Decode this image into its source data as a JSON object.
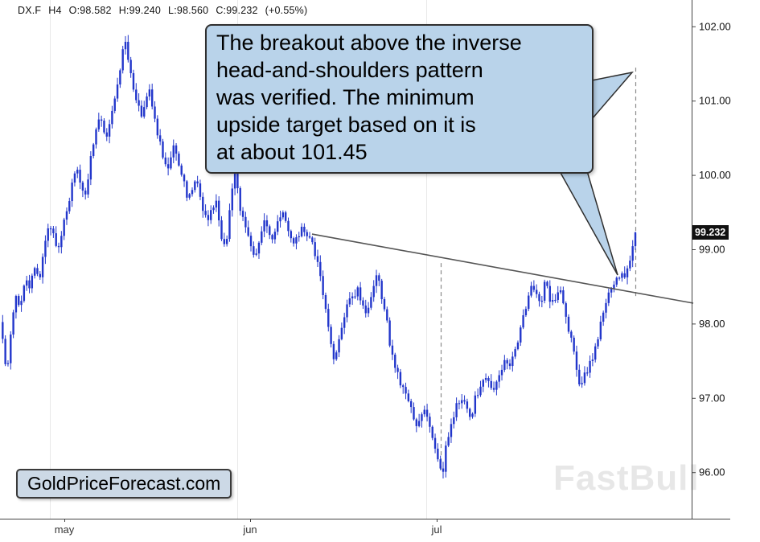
{
  "header": {
    "symbol": "DX.F",
    "timeframe": "H4",
    "open": "O:98.582",
    "high": "H:99.240",
    "low": "L:98.560",
    "close": "C:99.232",
    "change": "(+0.55%)"
  },
  "annotation": {
    "lines": [
      "The breakout above the inverse",
      "head-and-shoulders pattern",
      "was verified. The minimum",
      "upside target based on it is",
      "at about 101.45"
    ]
  },
  "watermarks": {
    "brand": "GoldPriceForecast.com",
    "platform": "FastBull"
  },
  "price_tag": "99.232",
  "colors": {
    "candle": "#2236cb",
    "callout_bg": "#b9d3ea",
    "callout_border": "#2f2f2f",
    "trendline": "#555555",
    "dashed": "#8a8a8a",
    "axis": "#444444",
    "grid": "#e9e9e9",
    "tick_text": "#111111",
    "xlabel_text": "#333333"
  },
  "chart_data": {
    "type": "candlestick",
    "title": "DX.F H4 (US Dollar Index futures, 4-hour)",
    "ylim": [
      95.38,
      102.36
    ],
    "y_ticks": [
      102,
      101,
      100,
      99,
      98,
      97,
      96
    ],
    "x_labels": [
      {
        "label": "may",
        "x": 80
      },
      {
        "label": "jun",
        "x": 311
      },
      {
        "label": "jul",
        "x": 543
      }
    ],
    "month_gridlines": [
      62,
      295,
      530
    ],
    "session_ohlc": {
      "open": 98.582,
      "high": 99.24,
      "low": 98.56,
      "close": 99.232,
      "change_pct": 0.55
    },
    "last_close": 99.232,
    "target_level": 101.45,
    "trendline": {
      "x1": 388,
      "price1": 99.21,
      "x2": 862,
      "price2": 98.28
    },
    "dashed_lines": [
      {
        "x": 548,
        "price_top": 98.82,
        "price_bottom": 96.02
      },
      {
        "x": 790,
        "price_top": 101.45,
        "price_bottom": 98.35
      }
    ],
    "price_path": [
      [
        0,
        98.05
      ],
      [
        5,
        97.6
      ],
      [
        9,
        97.32
      ],
      [
        14,
        97.95
      ],
      [
        19,
        98.4
      ],
      [
        25,
        98.2
      ],
      [
        31,
        98.62
      ],
      [
        37,
        98.5
      ],
      [
        43,
        98.78
      ],
      [
        49,
        98.6
      ],
      [
        55,
        99.05
      ],
      [
        61,
        99.38
      ],
      [
        67,
        99.15
      ],
      [
        73,
        99.02
      ],
      [
        79,
        99.35
      ],
      [
        85,
        99.62
      ],
      [
        91,
        99.95
      ],
      [
        95,
        100.12
      ],
      [
        100,
        99.85
      ],
      [
        106,
        99.72
      ],
      [
        112,
        100.18
      ],
      [
        118,
        100.48
      ],
      [
        124,
        100.85
      ],
      [
        129,
        100.62
      ],
      [
        134,
        100.52
      ],
      [
        140,
        100.95
      ],
      [
        146,
        101.18
      ],
      [
        152,
        101.68
      ],
      [
        156,
        101.82
      ],
      [
        160,
        101.55
      ],
      [
        164,
        101.32
      ],
      [
        168,
        101.08
      ],
      [
        173,
        100.95
      ],
      [
        177,
        100.8
      ],
      [
        182,
        101.05
      ],
      [
        187,
        101.15
      ],
      [
        191,
        100.82
      ],
      [
        197,
        100.52
      ],
      [
        203,
        100.22
      ],
      [
        209,
        100.12
      ],
      [
        215,
        100.4
      ],
      [
        221,
        100.18
      ],
      [
        227,
        99.98
      ],
      [
        233,
        99.68
      ],
      [
        239,
        99.85
      ],
      [
        245,
        99.95
      ],
      [
        251,
        99.6
      ],
      [
        257,
        99.4
      ],
      [
        263,
        99.55
      ],
      [
        269,
        99.65
      ],
      [
        275,
        99.2
      ],
      [
        281,
        99.02
      ],
      [
        287,
        99.68
      ],
      [
        292,
        100.02
      ],
      [
        298,
        99.6
      ],
      [
        304,
        99.35
      ],
      [
        310,
        99.12
      ],
      [
        316,
        98.95
      ],
      [
        322,
        99.05
      ],
      [
        328,
        99.42
      ],
      [
        334,
        99.25
      ],
      [
        340,
        99.12
      ],
      [
        346,
        99.45
      ],
      [
        352,
        99.52
      ],
      [
        358,
        99.25
      ],
      [
        364,
        99.05
      ],
      [
        370,
        99.15
      ],
      [
        376,
        99.32
      ],
      [
        382,
        99.2
      ],
      [
        388,
        99.08
      ],
      [
        394,
        98.85
      ],
      [
        400,
        98.55
      ],
      [
        406,
        98.1
      ],
      [
        412,
        97.7
      ],
      [
        416,
        97.45
      ],
      [
        421,
        97.82
      ],
      [
        427,
        98.05
      ],
      [
        433,
        98.28
      ],
      [
        439,
        98.35
      ],
      [
        445,
        98.48
      ],
      [
        451,
        98.25
      ],
      [
        457,
        98.12
      ],
      [
        463,
        98.4
      ],
      [
        469,
        98.68
      ],
      [
        475,
        98.32
      ],
      [
        481,
        98.02
      ],
      [
        487,
        97.58
      ],
      [
        493,
        97.38
      ],
      [
        499,
        97.18
      ],
      [
        505,
        97.02
      ],
      [
        511,
        96.88
      ],
      [
        517,
        96.62
      ],
      [
        523,
        96.75
      ],
      [
        529,
        96.9
      ],
      [
        535,
        96.58
      ],
      [
        541,
        96.32
      ],
      [
        547,
        96.08
      ],
      [
        551,
        96.05
      ],
      [
        555,
        96.38
      ],
      [
        561,
        96.62
      ],
      [
        567,
        96.88
      ],
      [
        573,
        97.02
      ],
      [
        579,
        96.9
      ],
      [
        585,
        96.72
      ],
      [
        591,
        97.0
      ],
      [
        597,
        97.15
      ],
      [
        603,
        97.3
      ],
      [
        609,
        97.18
      ],
      [
        615,
        97.08
      ],
      [
        621,
        97.35
      ],
      [
        627,
        97.5
      ],
      [
        633,
        97.4
      ],
      [
        639,
        97.62
      ],
      [
        645,
        97.82
      ],
      [
        651,
        98.12
      ],
      [
        657,
        98.38
      ],
      [
        661,
        98.55
      ],
      [
        667,
        98.4
      ],
      [
        673,
        98.3
      ],
      [
        679,
        98.62
      ],
      [
        685,
        98.25
      ],
      [
        691,
        98.32
      ],
      [
        697,
        98.45
      ],
      [
        703,
        98.08
      ],
      [
        709,
        97.85
      ],
      [
        715,
        97.5
      ],
      [
        721,
        97.2
      ],
      [
        727,
        97.3
      ],
      [
        733,
        97.45
      ],
      [
        739,
        97.62
      ],
      [
        745,
        97.9
      ],
      [
        751,
        98.2
      ],
      [
        757,
        98.45
      ],
      [
        763,
        98.55
      ],
      [
        769,
        98.6
      ],
      [
        775,
        98.65
      ],
      [
        781,
        98.72
      ],
      [
        785,
        98.95
      ],
      [
        790,
        99.232
      ]
    ]
  }
}
